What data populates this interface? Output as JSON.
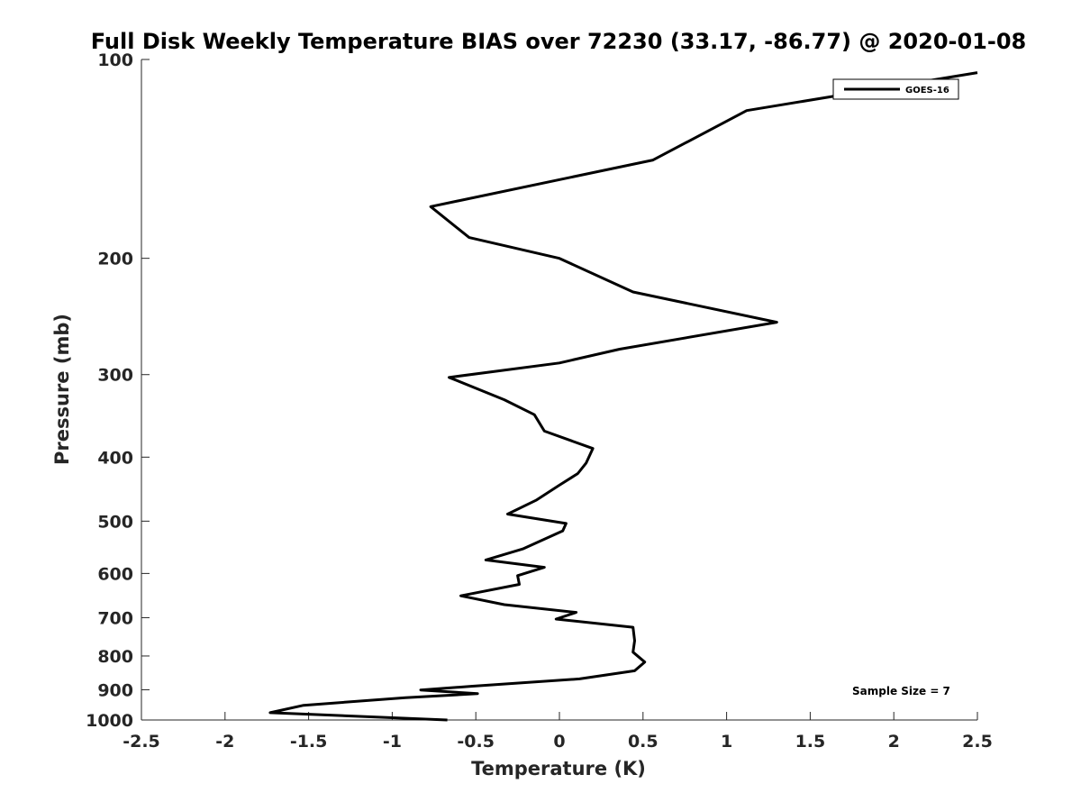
{
  "chart_data": {
    "type": "line",
    "title": "Full Disk Weekly Temperature BIAS over 72230 (33.17, -86.77) @ 2020-01-08",
    "xlabel": "Temperature (K)",
    "ylabel": "Pressure (mb)",
    "xlim": [
      -2.5,
      2.5
    ],
    "ylim": [
      1000,
      100
    ],
    "yscale": "log",
    "y_reversed": true,
    "xticks": [
      "-2.5",
      "-2",
      "-1.5",
      "-1",
      "-0.5",
      "0",
      "0.5",
      "1",
      "1.5",
      "2",
      "2.5"
    ],
    "yticks": [
      "100",
      "200",
      "300",
      "400",
      "500",
      "600",
      "700",
      "800",
      "900",
      "1000"
    ],
    "grid": false,
    "legend": {
      "location": "top-right",
      "entries": [
        "GOES-16"
      ]
    },
    "annotation": "Sample Size = 7",
    "colors": {
      "line": "#000000",
      "axes": "#262626"
    },
    "series": [
      {
        "name": "GOES-16",
        "points": [
          [
            2.5,
            104.7
          ],
          [
            1.12,
            119.5
          ],
          [
            0.56,
            142.0
          ],
          [
            -0.77,
            167.0
          ],
          [
            -0.54,
            186.0
          ],
          [
            0.0,
            200.0
          ],
          [
            0.44,
            224.9
          ],
          [
            1.3,
            249.9
          ],
          [
            0.36,
            274.5
          ],
          [
            0.0,
            288.1
          ],
          [
            -0.66,
            302.9
          ],
          [
            -0.33,
            327.5
          ],
          [
            -0.15,
            345.0
          ],
          [
            -0.09,
            365.3
          ],
          [
            0.2,
            388.1
          ],
          [
            0.16,
            408.3
          ],
          [
            0.11,
            423.5
          ],
          [
            0.0,
            441.1
          ],
          [
            -0.14,
            465.0
          ],
          [
            -0.31,
            487.9
          ],
          [
            0.04,
            504.1
          ],
          [
            0.02,
            517.1
          ],
          [
            -0.22,
            550.9
          ],
          [
            -0.44,
            572.5
          ],
          [
            -0.09,
            587.3
          ],
          [
            -0.25,
            604.5
          ],
          [
            -0.24,
            623.2
          ],
          [
            -0.59,
            648.6
          ],
          [
            -0.33,
            669.0
          ],
          [
            0.1,
            687.3
          ],
          [
            -0.02,
            703.5
          ],
          [
            0.44,
            723.7
          ],
          [
            0.45,
            758.6
          ],
          [
            0.44,
            789.3
          ],
          [
            0.51,
            817.2
          ],
          [
            0.45,
            842.3
          ],
          [
            0.12,
            866.6
          ],
          [
            -0.52,
            889.0
          ],
          [
            -0.83,
            900.6
          ],
          [
            -0.49,
            912.4
          ],
          [
            -0.92,
            925.0
          ],
          [
            -1.53,
            950.0
          ],
          [
            -1.73,
            975.0
          ],
          [
            -0.67,
            1000.0
          ]
        ]
      }
    ]
  }
}
